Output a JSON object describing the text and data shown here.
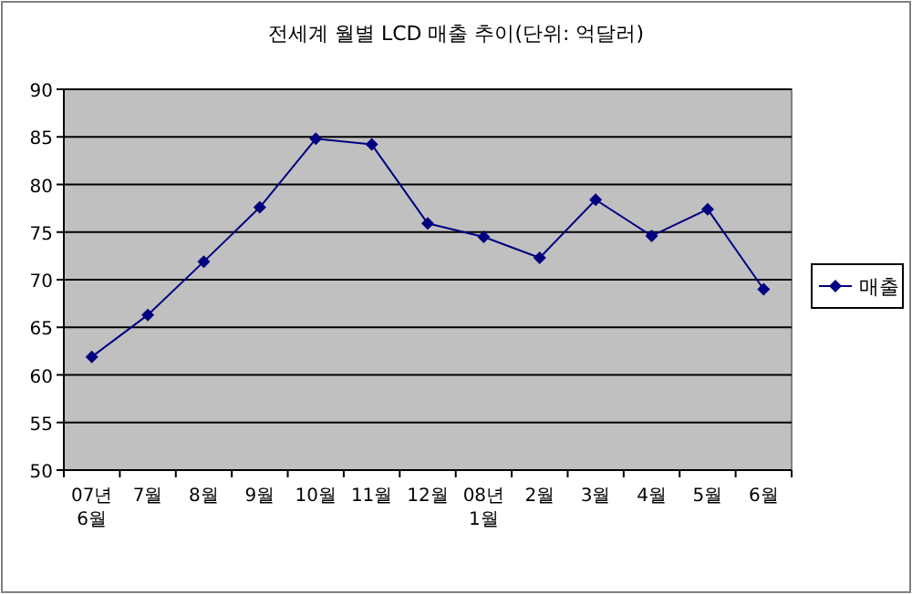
{
  "chart_data": {
    "type": "line",
    "title": "전세계 월별 LCD 매출 추이(단위: 억달러)",
    "categories": [
      "07년\n6월",
      "7월",
      "8월",
      "9월",
      "10월",
      "11월",
      "12월",
      "08년\n1월",
      "2월",
      "3월",
      "4월",
      "5월",
      "6월"
    ],
    "series": [
      {
        "name": "매출",
        "color": "#000080",
        "values": [
          61.9,
          66.3,
          71.9,
          77.6,
          84.8,
          84.2,
          75.9,
          74.5,
          72.3,
          78.4,
          74.6,
          77.4,
          69.0
        ]
      }
    ],
    "ylim": [
      50,
      90
    ],
    "yticks": [
      50,
      55,
      60,
      65,
      70,
      75,
      80,
      85,
      90
    ],
    "grid": "y",
    "legend": "right",
    "marker": "diamond",
    "line_style": "solid"
  }
}
